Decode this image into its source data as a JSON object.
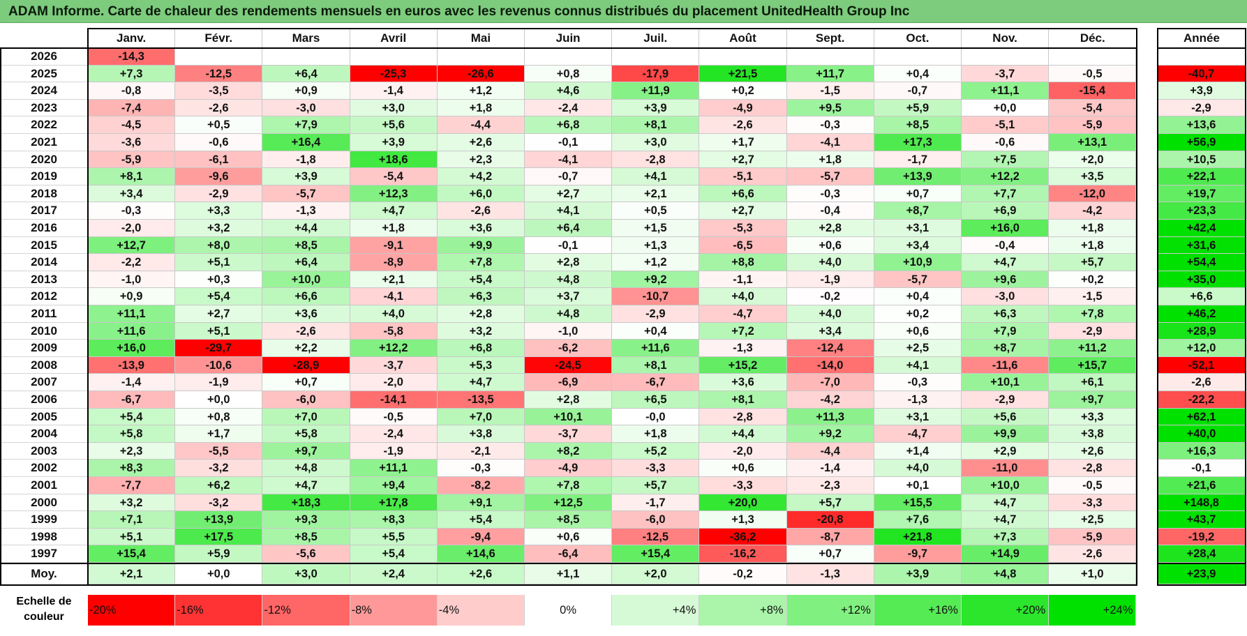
{
  "title": "ADAM Informe. Carte de chaleur des rendements mensuels en euros avec les revenus connus distribués du placement UnitedHealth Group Inc",
  "chart_data": {
    "type": "heatmap",
    "columns": [
      "Janv.",
      "Févr.",
      "Mars",
      "Avril",
      "Mai",
      "Juin",
      "Juil.",
      "Août",
      "Sept.",
      "Oct.",
      "Nov.",
      "Déc."
    ],
    "year_column": "Année",
    "rows": [
      {
        "year": "2026",
        "values": [
          "-14,3",
          "",
          "",
          "",
          "",
          "",
          "",
          "",
          "",
          "",
          "",
          ""
        ],
        "annual": ""
      },
      {
        "year": "2025",
        "values": [
          "+7,3",
          "-12,5",
          "+6,4",
          "-25,3",
          "-26,6",
          "+0,8",
          "-17,9",
          "+21,5",
          "+11,7",
          "+0,4",
          "-3,7",
          "-0,5"
        ],
        "annual": "-40,7"
      },
      {
        "year": "2024",
        "values": [
          "-0,8",
          "-3,5",
          "+0,9",
          "-1,4",
          "+1,2",
          "+4,6",
          "+11,9",
          "+0,2",
          "-1,5",
          "-0,7",
          "+11,1",
          "-15,4"
        ],
        "annual": "+3,9"
      },
      {
        "year": "2023",
        "values": [
          "-7,4",
          "-2,6",
          "-3,0",
          "+3,0",
          "+1,8",
          "-2,4",
          "+3,9",
          "-4,9",
          "+9,5",
          "+5,9",
          "+0,0",
          "-5,4"
        ],
        "annual": "-2,9"
      },
      {
        "year": "2022",
        "values": [
          "-4,5",
          "+0,5",
          "+7,9",
          "+5,6",
          "-4,4",
          "+6,8",
          "+8,1",
          "-2,6",
          "-0,3",
          "+8,5",
          "-5,1",
          "-5,9"
        ],
        "annual": "+13,6"
      },
      {
        "year": "2021",
        "values": [
          "-3,6",
          "-0,6",
          "+16,4",
          "+3,9",
          "+2,6",
          "-0,1",
          "+3,0",
          "+1,7",
          "-4,1",
          "+17,3",
          "-0,6",
          "+13,1"
        ],
        "annual": "+56,9"
      },
      {
        "year": "2020",
        "values": [
          "-5,9",
          "-6,1",
          "-1,8",
          "+18,6",
          "+2,3",
          "-4,1",
          "-2,8",
          "+2,7",
          "+1,8",
          "-1,7",
          "+7,5",
          "+2,0"
        ],
        "annual": "+10,5"
      },
      {
        "year": "2019",
        "values": [
          "+8,1",
          "-9,6",
          "+3,9",
          "-5,4",
          "+4,2",
          "-0,7",
          "+4,1",
          "-5,1",
          "-5,7",
          "+13,9",
          "+12,2",
          "+3,5"
        ],
        "annual": "+22,1"
      },
      {
        "year": "2018",
        "values": [
          "+3,4",
          "-2,9",
          "-5,7",
          "+12,3",
          "+6,0",
          "+2,7",
          "+2,1",
          "+6,6",
          "-0,3",
          "+0,7",
          "+7,7",
          "-12,0"
        ],
        "annual": "+19,7"
      },
      {
        "year": "2017",
        "values": [
          "-0,3",
          "+3,3",
          "-1,3",
          "+4,7",
          "-2,6",
          "+4,1",
          "+0,5",
          "+2,7",
          "-0,4",
          "+8,7",
          "+6,9",
          "-4,2"
        ],
        "annual": "+23,3"
      },
      {
        "year": "2016",
        "values": [
          "-2,0",
          "+3,2",
          "+4,4",
          "+1,8",
          "+3,6",
          "+6,4",
          "+1,5",
          "-5,3",
          "+2,8",
          "+3,1",
          "+16,0",
          "+1,8"
        ],
        "annual": "+42,4"
      },
      {
        "year": "2015",
        "values": [
          "+12,7",
          "+8,0",
          "+8,5",
          "-9,1",
          "+9,9",
          "-0,1",
          "+1,3",
          "-6,5",
          "+0,6",
          "+3,4",
          "-0,4",
          "+1,8"
        ],
        "annual": "+31,6"
      },
      {
        "year": "2014",
        "values": [
          "-2,2",
          "+5,1",
          "+6,4",
          "-8,9",
          "+7,8",
          "+2,8",
          "+1,2",
          "+8,8",
          "+4,0",
          "+10,9",
          "+4,7",
          "+5,7"
        ],
        "annual": "+54,4"
      },
      {
        "year": "2013",
        "values": [
          "-1,0",
          "+0,3",
          "+10,0",
          "+2,1",
          "+5,4",
          "+4,8",
          "+9,2",
          "-1,1",
          "-1,9",
          "-5,7",
          "+9,6",
          "+0,2"
        ],
        "annual": "+35,0"
      },
      {
        "year": "2012",
        "values": [
          "+0,9",
          "+5,4",
          "+6,6",
          "-4,1",
          "+6,3",
          "+3,7",
          "-10,7",
          "+4,0",
          "-0,2",
          "+0,4",
          "-3,0",
          "-1,5"
        ],
        "annual": "+6,6"
      },
      {
        "year": "2011",
        "values": [
          "+11,1",
          "+2,7",
          "+3,6",
          "+4,0",
          "+2,8",
          "+4,8",
          "-2,9",
          "-4,7",
          "+4,0",
          "+0,2",
          "+6,3",
          "+7,8"
        ],
        "annual": "+46,2"
      },
      {
        "year": "2010",
        "values": [
          "+11,6",
          "+5,1",
          "-2,6",
          "-5,8",
          "+3,2",
          "-1,0",
          "+0,4",
          "+7,2",
          "+3,4",
          "+0,6",
          "+7,9",
          "-2,9"
        ],
        "annual": "+28,9"
      },
      {
        "year": "2009",
        "values": [
          "+16,0",
          "-29,7",
          "+2,2",
          "+12,2",
          "+6,8",
          "-6,2",
          "+11,6",
          "-1,3",
          "-12,4",
          "+2,5",
          "+8,7",
          "+11,2"
        ],
        "annual": "+12,0"
      },
      {
        "year": "2008",
        "values": [
          "-13,9",
          "-10,6",
          "-28,9",
          "-3,7",
          "+5,3",
          "-24,5",
          "+8,1",
          "+15,2",
          "-14,0",
          "+4,1",
          "-11,6",
          "+15,7"
        ],
        "annual": "-52,1"
      },
      {
        "year": "2007",
        "values": [
          "-1,4",
          "-1,9",
          "+0,7",
          "-2,0",
          "+4,7",
          "-6,9",
          "-6,7",
          "+3,6",
          "-7,0",
          "-0,3",
          "+10,1",
          "+6,1"
        ],
        "annual": "-2,6"
      },
      {
        "year": "2006",
        "values": [
          "-6,7",
          "+0,0",
          "-6,0",
          "-14,1",
          "-13,5",
          "+2,8",
          "+6,5",
          "+8,1",
          "-4,2",
          "-1,3",
          "-2,9",
          "+9,7"
        ],
        "annual": "-22,2"
      },
      {
        "year": "2005",
        "values": [
          "+5,4",
          "+0,8",
          "+7,0",
          "-0,5",
          "+7,0",
          "+10,1",
          "-0,0",
          "-2,8",
          "+11,3",
          "+3,1",
          "+5,6",
          "+3,3"
        ],
        "annual": "+62,1"
      },
      {
        "year": "2004",
        "values": [
          "+5,8",
          "+1,7",
          "+5,8",
          "-2,4",
          "+3,8",
          "-3,7",
          "+1,8",
          "+4,4",
          "+9,2",
          "-4,7",
          "+9,9",
          "+3,8"
        ],
        "annual": "+40,0"
      },
      {
        "year": "2003",
        "values": [
          "+2,3",
          "-5,5",
          "+9,7",
          "-1,9",
          "-2,1",
          "+8,2",
          "+5,2",
          "-2,0",
          "-4,4",
          "+1,4",
          "+2,9",
          "+2,6"
        ],
        "annual": "+16,3"
      },
      {
        "year": "2002",
        "values": [
          "+8,3",
          "-3,2",
          "+4,8",
          "+11,1",
          "-0,3",
          "-4,9",
          "-3,3",
          "+0,6",
          "-1,4",
          "+4,0",
          "-11,0",
          "-2,8"
        ],
        "annual": "-0,1"
      },
      {
        "year": "2001",
        "values": [
          "-7,7",
          "+6,2",
          "+4,7",
          "+9,4",
          "-8,2",
          "+7,8",
          "+5,7",
          "-3,3",
          "-2,3",
          "+0,1",
          "+10,0",
          "-0,5"
        ],
        "annual": "+21,6"
      },
      {
        "year": "2000",
        "values": [
          "+3,2",
          "-3,2",
          "+18,3",
          "+17,8",
          "+9,1",
          "+12,5",
          "-1,7",
          "+20,0",
          "+5,7",
          "+15,5",
          "+4,7",
          "-3,3"
        ],
        "annual": "+148,8"
      },
      {
        "year": "1999",
        "values": [
          "+7,1",
          "+13,9",
          "+9,3",
          "+8,3",
          "+5,4",
          "+8,5",
          "-6,0",
          "+1,3",
          "-20,8",
          "+7,6",
          "+4,7",
          "+2,5"
        ],
        "annual": "+43,7"
      },
      {
        "year": "1998",
        "values": [
          "+5,1",
          "+17,5",
          "+8,5",
          "+5,5",
          "-9,4",
          "+0,6",
          "-12,5",
          "-36,2",
          "-8,7",
          "+21,8",
          "+7,3",
          "-5,9"
        ],
        "annual": "-19,2"
      },
      {
        "year": "1997",
        "values": [
          "+15,4",
          "+5,9",
          "-5,6",
          "+5,4",
          "+14,6",
          "-6,4",
          "+15,4",
          "-16,2",
          "+0,7",
          "-9,7",
          "+14,9",
          "-2,6"
        ],
        "annual": "+28,4"
      }
    ],
    "average": {
      "label": "Moy.",
      "values": [
        "+2,1",
        "+0,0",
        "+3,0",
        "+2,4",
        "+2,6",
        "+1,1",
        "+2,0",
        "-0,2",
        "-1,3",
        "+3,9",
        "+4,8",
        "+1,0"
      ],
      "annual": "+23,9"
    },
    "scale": {
      "label_line1": "Echelle de",
      "label_line2": "couleur",
      "stops": [
        {
          "label": "-20%",
          "value": -20,
          "color": "#ff0000"
        },
        {
          "label": "-16%",
          "value": -16,
          "color": "#ff3333"
        },
        {
          "label": "-12%",
          "value": -12,
          "color": "#ff6666"
        },
        {
          "label": "-8%",
          "value": -8,
          "color": "#ff9999"
        },
        {
          "label": "-4%",
          "value": -4,
          "color": "#ffcccc"
        },
        {
          "label": "0%",
          "value": 0,
          "color": "#ffffff"
        },
        {
          "label": "+4%",
          "value": 4,
          "color": "#d5fad5"
        },
        {
          "label": "+8%",
          "value": 8,
          "color": "#aaf5aa"
        },
        {
          "label": "+12%",
          "value": 12,
          "color": "#80f080"
        },
        {
          "label": "+16%",
          "value": 16,
          "color": "#55eb55"
        },
        {
          "label": "+20%",
          "value": 20,
          "color": "#2be62b"
        },
        {
          "label": "+24%",
          "value": 24,
          "color": "#00e100"
        }
      ]
    }
  }
}
